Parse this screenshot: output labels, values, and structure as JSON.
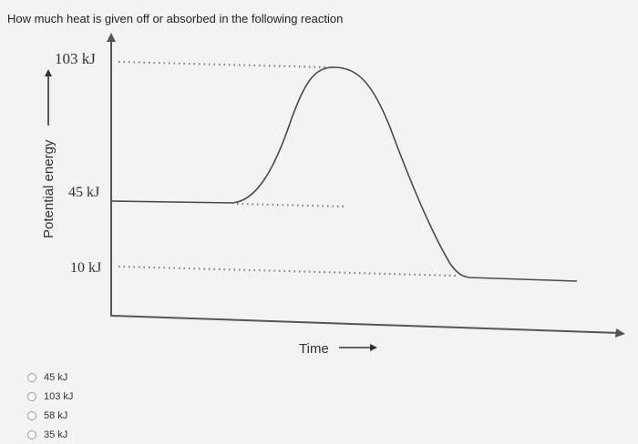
{
  "question": {
    "text": "How much heat is given off or absorbed in the following reaction"
  },
  "diagram": {
    "y_axis_label": "Potential energy",
    "x_axis_label": "Time",
    "level_labels": {
      "peak": "103 kJ",
      "reactants": "45 kJ",
      "products": "10 kJ"
    }
  },
  "options": [
    {
      "label": "45 kJ"
    },
    {
      "label": "103 kJ"
    },
    {
      "label": "58 kJ"
    },
    {
      "label": "35 kJ"
    }
  ]
}
